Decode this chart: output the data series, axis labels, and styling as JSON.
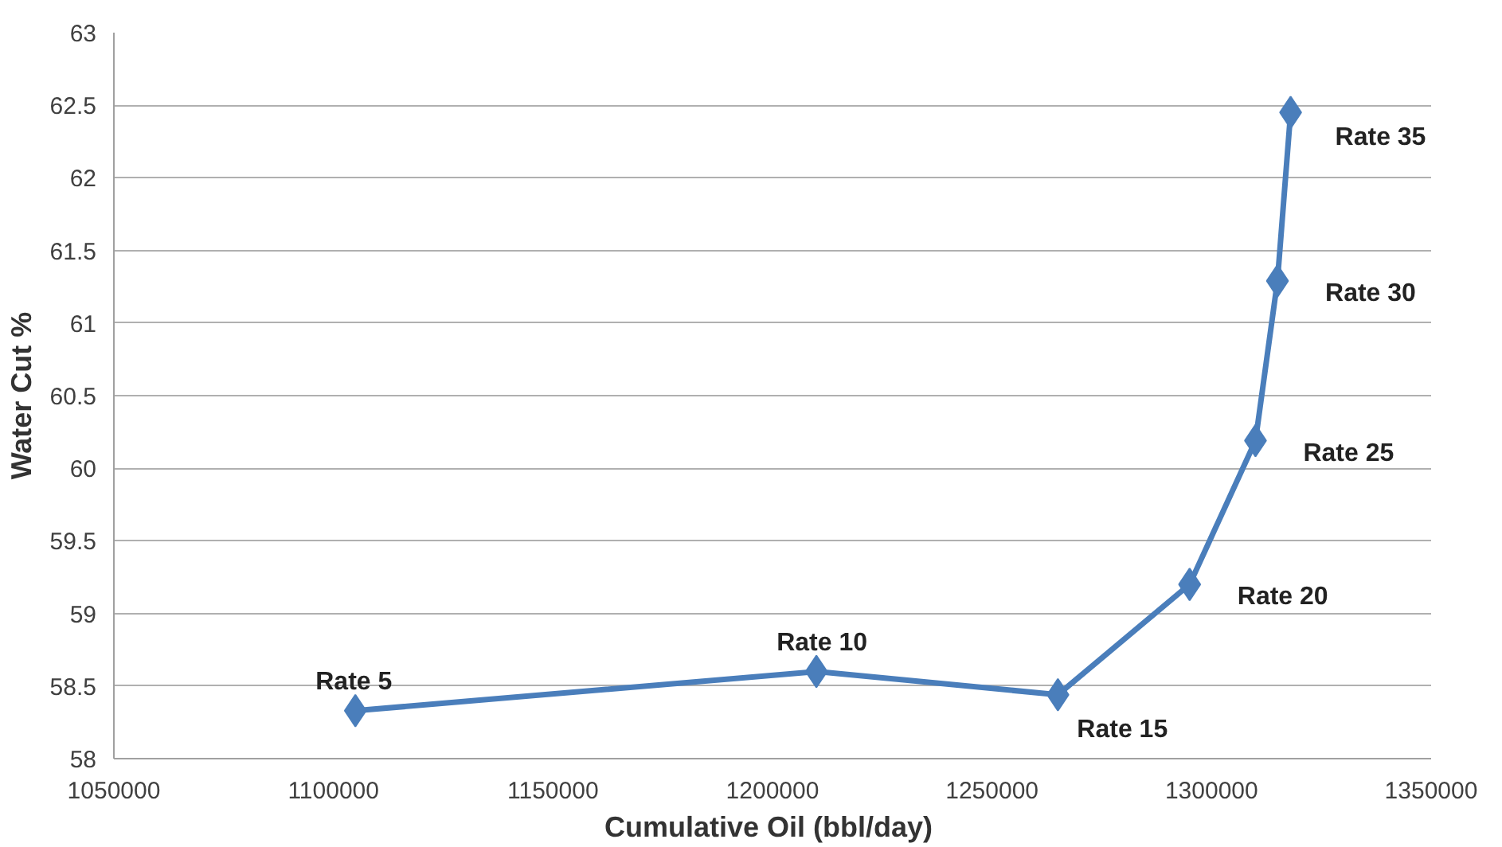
{
  "chart_data": {
    "type": "line",
    "xlabel": "Cumulative  Oil (bbl/day)",
    "ylabel": "Water Cut %",
    "x": [
      1105000,
      1210000,
      1265000,
      1295000,
      1310000,
      1315000,
      1318000
    ],
    "series": [
      {
        "color": "#4a7ebb",
        "values": [
          58.33,
          58.6,
          58.44,
          59.2,
          60.19,
          61.29,
          62.45
        ]
      }
    ],
    "xlim": [
      1050000,
      1350000
    ],
    "xticks": [
      1050000,
      1100000,
      1150000,
      1200000,
      1250000,
      1300000,
      1350000
    ],
    "ylim": [
      58,
      63
    ],
    "yticks": [
      58,
      58.5,
      59,
      59.5,
      60,
      60.5,
      61,
      61.5,
      62,
      62.5,
      63
    ],
    "grid": "y",
    "marker": "diamond",
    "line_style": "solid",
    "annotations": [
      {
        "text": "Rate 5",
        "x": 1105000,
        "y": 58.33
      },
      {
        "text": "Rate 10",
        "x": 1210000,
        "y": 58.6
      },
      {
        "text": "Rate 15",
        "x": 1265000,
        "y": 58.44
      },
      {
        "text": "Rate 20",
        "x": 1295000,
        "y": 59.2
      },
      {
        "text": "Rate 25",
        "x": 1310000,
        "y": 60.19
      },
      {
        "text": "Rate 30",
        "x": 1315000,
        "y": 61.29
      },
      {
        "text": "Rate 35",
        "x": 1318000,
        "y": 62.45
      }
    ]
  }
}
